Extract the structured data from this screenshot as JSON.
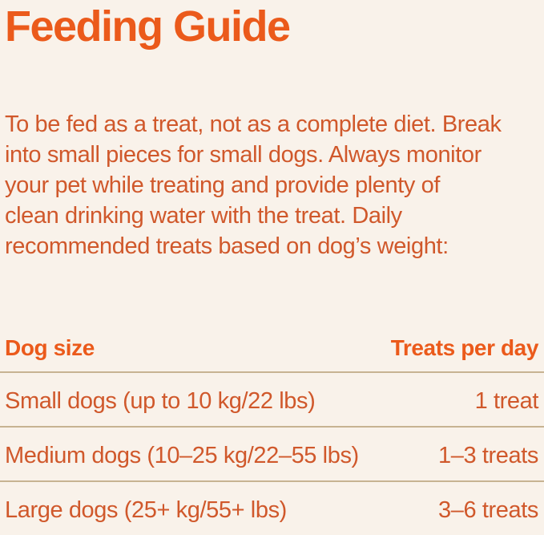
{
  "colors": {
    "background": "#F9F2EA",
    "accent_orange": "#EB5A1B",
    "body_orange": "#D0582B",
    "divider_tan": "#C7B392"
  },
  "header": {
    "title": "Feeding Guide"
  },
  "intro": {
    "full_text": "To be fed as a treat, not as a complete diet. Break into small pieces for small dogs. Always monitor your pet while treating and provide plenty of clean drinking water with the treat. Daily recommended treats based on dog’s weight:",
    "lines": [
      "To be fed as a treat, not as a complete diet. Break",
      "into small pieces for small dogs. Always monitor",
      "your pet while treating and provide plenty of",
      "clean drinking water with the treat. Daily",
      "recommended treats based on dog’s weight:"
    ]
  },
  "feeding_table": {
    "headers": {
      "dog_size": "Dog size",
      "treats_per_day": "Treats per day"
    },
    "rows": [
      {
        "size": "Small dogs (up to 10 kg/22 lbs)",
        "treats": "1 treat"
      },
      {
        "size": "Medium dogs (10–25 kg/22–55 lbs)",
        "treats": "1–3 treats"
      },
      {
        "size": "Large dogs (25+ kg/55+ lbs)",
        "treats": "3–6 treats"
      }
    ]
  }
}
